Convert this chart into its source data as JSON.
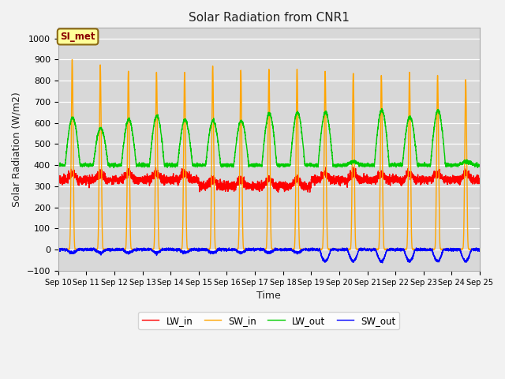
{
  "title": "Solar Radiation from CNR1",
  "xlabel": "Time",
  "ylabel": "Solar Radiation (W/m2)",
  "ylim": [
    -100,
    1050
  ],
  "bg_color": "#d8d8d8",
  "fig_bg_color": "#f2f2f2",
  "label_box_text": "SI_met",
  "label_box_facecolor": "#ffff99",
  "label_box_edgecolor": "#8b6914",
  "label_box_textcolor": "#8b0000",
  "lw_in_color": "#ff0000",
  "sw_in_color": "#ffa500",
  "lw_out_color": "#00cc00",
  "sw_out_color": "#0000ff",
  "line_width": 1.0,
  "legend_labels": [
    "LW_in",
    "SW_in",
    "LW_out",
    "SW_out"
  ],
  "n_days": 15,
  "sw_in_peaks": [
    900,
    875,
    845,
    840,
    840,
    870,
    850,
    855,
    855,
    845,
    835,
    825,
    840,
    825,
    805
  ],
  "lw_out_peaks": [
    625,
    575,
    615,
    635,
    615,
    610,
    610,
    645,
    650,
    650,
    415,
    660,
    630,
    660,
    415
  ],
  "lw_out_base": 400,
  "lw_in_base": 330,
  "lw_in_amplitude": 30,
  "sw_out_base": -20,
  "tick_dates": [
    "Sep 10",
    "Sep 11",
    "Sep 12",
    "Sep 13",
    "Sep 14",
    "Sep 15",
    "Sep 16",
    "Sep 17",
    "Sep 18",
    "Sep 19",
    "Sep 20",
    "Sep 21",
    "Sep 22",
    "Sep 23",
    "Sep 24",
    "Sep 25"
  ],
  "yticks": [
    -100,
    0,
    100,
    200,
    300,
    400,
    500,
    600,
    700,
    800,
    900,
    1000
  ]
}
